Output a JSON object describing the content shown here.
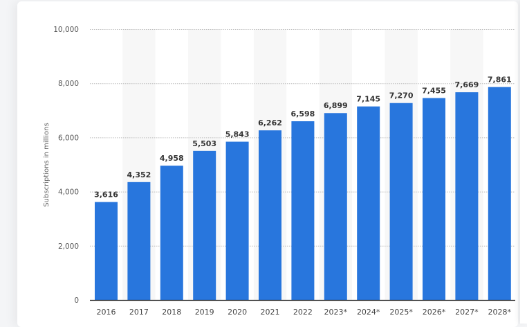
{
  "chart_data": {
    "type": "bar",
    "categories": [
      "2016",
      "2017",
      "2018",
      "2019",
      "2020",
      "2021",
      "2022",
      "2023*",
      "2024*",
      "2025*",
      "2026*",
      "2027*",
      "2028*"
    ],
    "values": [
      3616,
      4352,
      4958,
      5503,
      5843,
      6262,
      6598,
      6899,
      7145,
      7270,
      7455,
      7669,
      7861
    ],
    "data_labels": [
      "3,616",
      "4,352",
      "4,958",
      "5,503",
      "5,843",
      "6,262",
      "6,598",
      "6,899",
      "7,145",
      "7,270",
      "7,455",
      "7,669",
      "7,861"
    ],
    "xlabel": "",
    "ylabel": "Subscriptions in millions",
    "ylim": [
      0,
      10000
    ],
    "yticks": [
      0,
      2000,
      4000,
      6000,
      8000,
      10000
    ],
    "ytick_labels": [
      "0",
      "2,000",
      "4,000",
      "6,000",
      "8,000",
      "10,000"
    ],
    "grid": true,
    "bar_color": "#2876dd"
  }
}
